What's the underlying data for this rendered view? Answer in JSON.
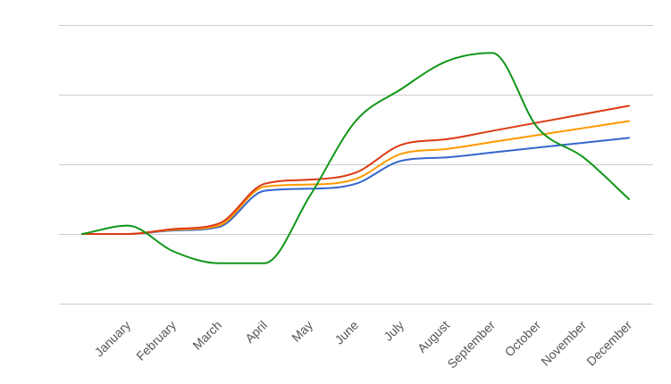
{
  "chart_data": {
    "type": "line",
    "smooth": true,
    "categories": [
      "",
      "January",
      "February",
      "March",
      "April",
      "May",
      "June",
      "July",
      "August",
      "September",
      "October",
      "November",
      "December"
    ],
    "ylim": [
      -1,
      3
    ],
    "grid": true,
    "gridlines": [
      -1,
      0,
      1,
      2,
      3
    ],
    "legend": "none",
    "series": [
      {
        "color": "#3366cc",
        "values": [
          0,
          0,
          0.05,
          0.1,
          0.62,
          0.65,
          0.72,
          1.05,
          1.1,
          1.17,
          1.24,
          1.31,
          1.38
        ]
      },
      {
        "color": "#ff9900",
        "values": [
          0,
          0,
          0.06,
          0.12,
          0.68,
          0.71,
          0.79,
          1.15,
          1.22,
          1.32,
          1.42,
          1.52,
          1.62
        ]
      },
      {
        "color": "#dc3912",
        "values": [
          0,
          0,
          0.07,
          0.15,
          0.72,
          0.78,
          0.88,
          1.28,
          1.36,
          1.48,
          1.6,
          1.72,
          1.84
        ]
      },
      {
        "color": "#109618",
        "values": [
          0,
          0.12,
          -0.25,
          -0.42,
          -0.42,
          0.55,
          1.62,
          2.08,
          2.48,
          2.6,
          1.52,
          1.1,
          0.5
        ]
      }
    ]
  }
}
